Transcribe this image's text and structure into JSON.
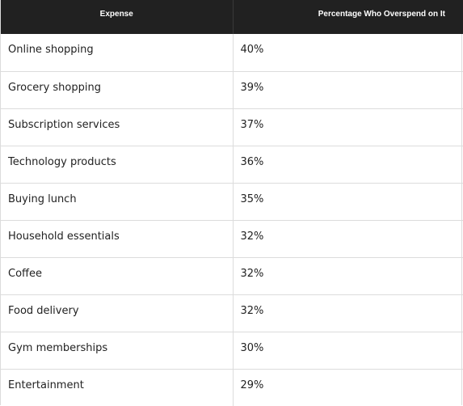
{
  "table": {
    "headers": [
      "Expense",
      "Percentage Who Overspend on It"
    ],
    "rows": [
      {
        "expense": "Online shopping",
        "percent": "40%"
      },
      {
        "expense": "Grocery shopping",
        "percent": "39%"
      },
      {
        "expense": "Subscription services",
        "percent": "37%"
      },
      {
        "expense": "Technology products",
        "percent": "36%"
      },
      {
        "expense": "Buying lunch",
        "percent": "35%"
      },
      {
        "expense": "Household essentials",
        "percent": "32%"
      },
      {
        "expense": "Coffee",
        "percent": "32%"
      },
      {
        "expense": "Food delivery",
        "percent": "32%"
      },
      {
        "expense": "Gym memberships",
        "percent": "30%"
      },
      {
        "expense": "Entertainment",
        "percent": "29%"
      }
    ]
  }
}
